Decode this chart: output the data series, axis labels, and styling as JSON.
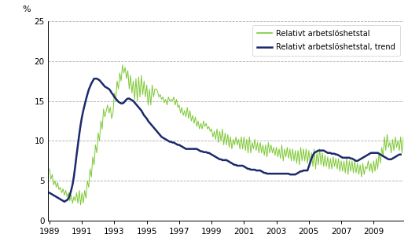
{
  "ylabel": "%",
  "ylim": [
    0,
    25
  ],
  "yticks": [
    0,
    5,
    10,
    15,
    20,
    25
  ],
  "legend1": "Relativt arbetslöshetstal",
  "legend2": "Relativt arbetslöshetstal, trend",
  "color_raw": "#7dc832",
  "color_trend": "#1a2a6c",
  "raw_data": [
    6.5,
    5.2,
    5.8,
    4.5,
    5.0,
    4.2,
    4.8,
    3.9,
    4.2,
    3.5,
    4.0,
    3.2,
    3.8,
    3.0,
    3.5,
    2.5,
    3.2,
    2.2,
    3.0,
    2.5,
    3.5,
    2.2,
    3.8,
    2.0,
    3.5,
    2.2,
    3.8,
    2.8,
    5.0,
    4.2,
    6.5,
    5.5,
    8.0,
    7.0,
    9.5,
    8.5,
    11.0,
    10.0,
    12.5,
    11.5,
    14.0,
    13.0,
    13.8,
    14.5,
    13.5,
    14.2,
    12.8,
    13.5,
    16.0,
    15.0,
    17.5,
    16.5,
    18.5,
    17.5,
    19.5,
    18.5,
    19.2,
    17.8,
    18.8,
    16.5,
    18.2,
    16.0,
    17.5,
    15.2,
    17.8,
    15.0,
    18.0,
    15.5,
    18.2,
    15.8,
    17.5,
    15.5,
    17.0,
    14.5,
    16.5,
    14.5,
    17.0,
    15.5,
    16.5,
    16.5,
    16.2,
    15.5,
    15.8,
    15.2,
    15.5,
    14.8,
    15.2,
    14.5,
    15.5,
    15.0,
    15.2,
    15.0,
    15.5,
    14.5,
    15.2,
    14.2,
    14.5,
    13.5,
    14.2,
    13.2,
    13.8,
    13.0,
    14.2,
    12.8,
    13.8,
    12.5,
    13.2,
    12.2,
    13.0,
    11.8,
    12.5,
    11.5,
    12.2,
    11.5,
    12.5,
    11.8,
    12.2,
    11.5,
    11.8,
    11.2,
    11.5,
    10.5,
    11.2,
    10.2,
    11.5,
    9.8,
    11.2,
    10.0,
    11.5,
    9.5,
    11.0,
    9.5,
    10.8,
    9.2,
    10.5,
    9.0,
    10.2,
    9.5,
    10.5,
    9.5,
    10.2,
    9.0,
    10.5,
    9.0,
    10.5,
    8.8,
    10.2,
    8.5,
    10.5,
    8.5,
    9.8,
    9.0,
    10.2,
    8.8,
    9.8,
    8.5,
    9.8,
    8.5,
    9.5,
    8.2,
    9.5,
    8.0,
    9.8,
    8.5,
    9.5,
    8.5,
    9.2,
    8.2,
    9.2,
    8.0,
    9.0,
    7.8,
    9.5,
    7.5,
    9.0,
    8.0,
    9.2,
    7.8,
    9.0,
    7.5,
    9.0,
    7.5,
    8.8,
    7.2,
    8.8,
    7.0,
    9.2,
    7.5,
    9.0,
    7.5,
    9.0,
    7.2,
    8.8,
    7.0,
    8.5,
    6.8,
    9.0,
    6.5,
    8.5,
    7.0,
    9.0,
    7.0,
    8.5,
    6.8,
    8.2,
    6.8,
    8.0,
    6.5,
    7.8,
    6.5,
    8.0,
    6.8,
    7.8,
    6.5,
    7.8,
    6.2,
    7.5,
    6.2,
    7.5,
    6.0,
    7.8,
    5.8,
    7.5,
    6.2,
    7.5,
    6.0,
    7.5,
    6.0,
    7.2,
    5.8,
    7.0,
    5.5,
    7.2,
    5.8,
    6.8,
    6.5,
    7.5,
    6.2,
    7.2,
    6.0,
    7.5,
    6.2,
    7.8,
    6.5,
    8.5,
    7.2,
    9.2,
    8.0,
    10.5,
    8.8,
    10.8,
    9.2,
    9.8,
    8.5,
    10.2,
    8.8,
    10.5,
    9.2,
    10.0,
    8.8,
    10.5,
    8.5,
    10.5,
    8.2,
    9.8,
    8.2,
    9.5,
    7.8,
    9.8,
    8.2,
    9.5,
    8.0,
    10.2,
    8.5,
    10.5,
    8.8,
    10.8
  ],
  "trend_data": [
    3.5,
    3.4,
    3.3,
    3.2,
    3.1,
    3.0,
    2.9,
    2.8,
    2.7,
    2.6,
    2.5,
    2.4,
    2.5,
    2.6,
    2.8,
    3.2,
    3.8,
    4.5,
    5.5,
    6.8,
    8.2,
    9.5,
    10.8,
    12.0,
    13.0,
    13.8,
    14.5,
    15.2,
    15.8,
    16.4,
    16.8,
    17.2,
    17.5,
    17.8,
    17.8,
    17.8,
    17.7,
    17.6,
    17.4,
    17.2,
    17.0,
    16.8,
    16.7,
    16.6,
    16.5,
    16.3,
    16.0,
    15.8,
    15.5,
    15.3,
    15.1,
    14.9,
    14.8,
    14.7,
    14.7,
    14.8,
    15.0,
    15.2,
    15.3,
    15.3,
    15.2,
    15.1,
    15.0,
    14.8,
    14.6,
    14.4,
    14.2,
    14.0,
    13.8,
    13.5,
    13.2,
    13.0,
    12.8,
    12.5,
    12.3,
    12.1,
    11.9,
    11.7,
    11.5,
    11.3,
    11.1,
    10.9,
    10.7,
    10.5,
    10.4,
    10.3,
    10.2,
    10.1,
    10.0,
    9.9,
    9.9,
    9.8,
    9.8,
    9.7,
    9.6,
    9.5,
    9.5,
    9.4,
    9.3,
    9.2,
    9.1,
    9.0,
    9.0,
    9.0,
    9.0,
    9.0,
    9.0,
    9.0,
    9.0,
    9.0,
    8.9,
    8.8,
    8.7,
    8.7,
    8.6,
    8.6,
    8.6,
    8.5,
    8.5,
    8.4,
    8.3,
    8.2,
    8.1,
    8.0,
    7.9,
    7.8,
    7.7,
    7.7,
    7.6,
    7.6,
    7.6,
    7.6,
    7.5,
    7.4,
    7.3,
    7.2,
    7.1,
    7.0,
    7.0,
    6.9,
    6.9,
    6.9,
    6.9,
    6.9,
    6.8,
    6.7,
    6.6,
    6.5,
    6.5,
    6.4,
    6.4,
    6.4,
    6.4,
    6.3,
    6.3,
    6.3,
    6.3,
    6.2,
    6.1,
    6.0,
    6.0,
    5.9,
    5.9,
    5.9,
    5.9,
    5.9,
    5.9,
    5.9,
    5.9,
    5.9,
    5.9,
    5.9,
    5.9,
    5.9,
    5.9,
    5.9,
    5.9,
    5.9,
    5.8,
    5.8,
    5.8,
    5.8,
    5.8,
    5.9,
    6.0,
    6.1,
    6.2,
    6.2,
    6.3,
    6.3,
    6.3,
    6.3,
    6.8,
    7.3,
    7.8,
    8.2,
    8.5,
    8.6,
    8.7,
    8.8,
    8.8,
    8.8,
    8.8,
    8.8,
    8.7,
    8.6,
    8.5,
    8.5,
    8.5,
    8.4,
    8.4,
    8.4,
    8.3,
    8.3,
    8.2,
    8.1,
    8.0,
    7.9,
    7.9,
    7.9,
    7.9,
    7.9,
    7.9,
    7.8,
    7.8,
    7.7,
    7.6,
    7.5,
    7.5,
    7.6,
    7.7,
    7.8,
    7.9,
    8.0,
    8.1,
    8.2,
    8.3,
    8.4,
    8.5,
    8.5,
    8.5,
    8.5,
    8.5,
    8.5,
    8.4,
    8.3,
    8.2,
    8.1,
    8.0,
    7.9,
    7.8,
    7.7,
    7.7,
    7.7,
    7.8,
    7.9,
    8.0,
    8.1,
    8.2,
    8.3,
    8.3
  ]
}
